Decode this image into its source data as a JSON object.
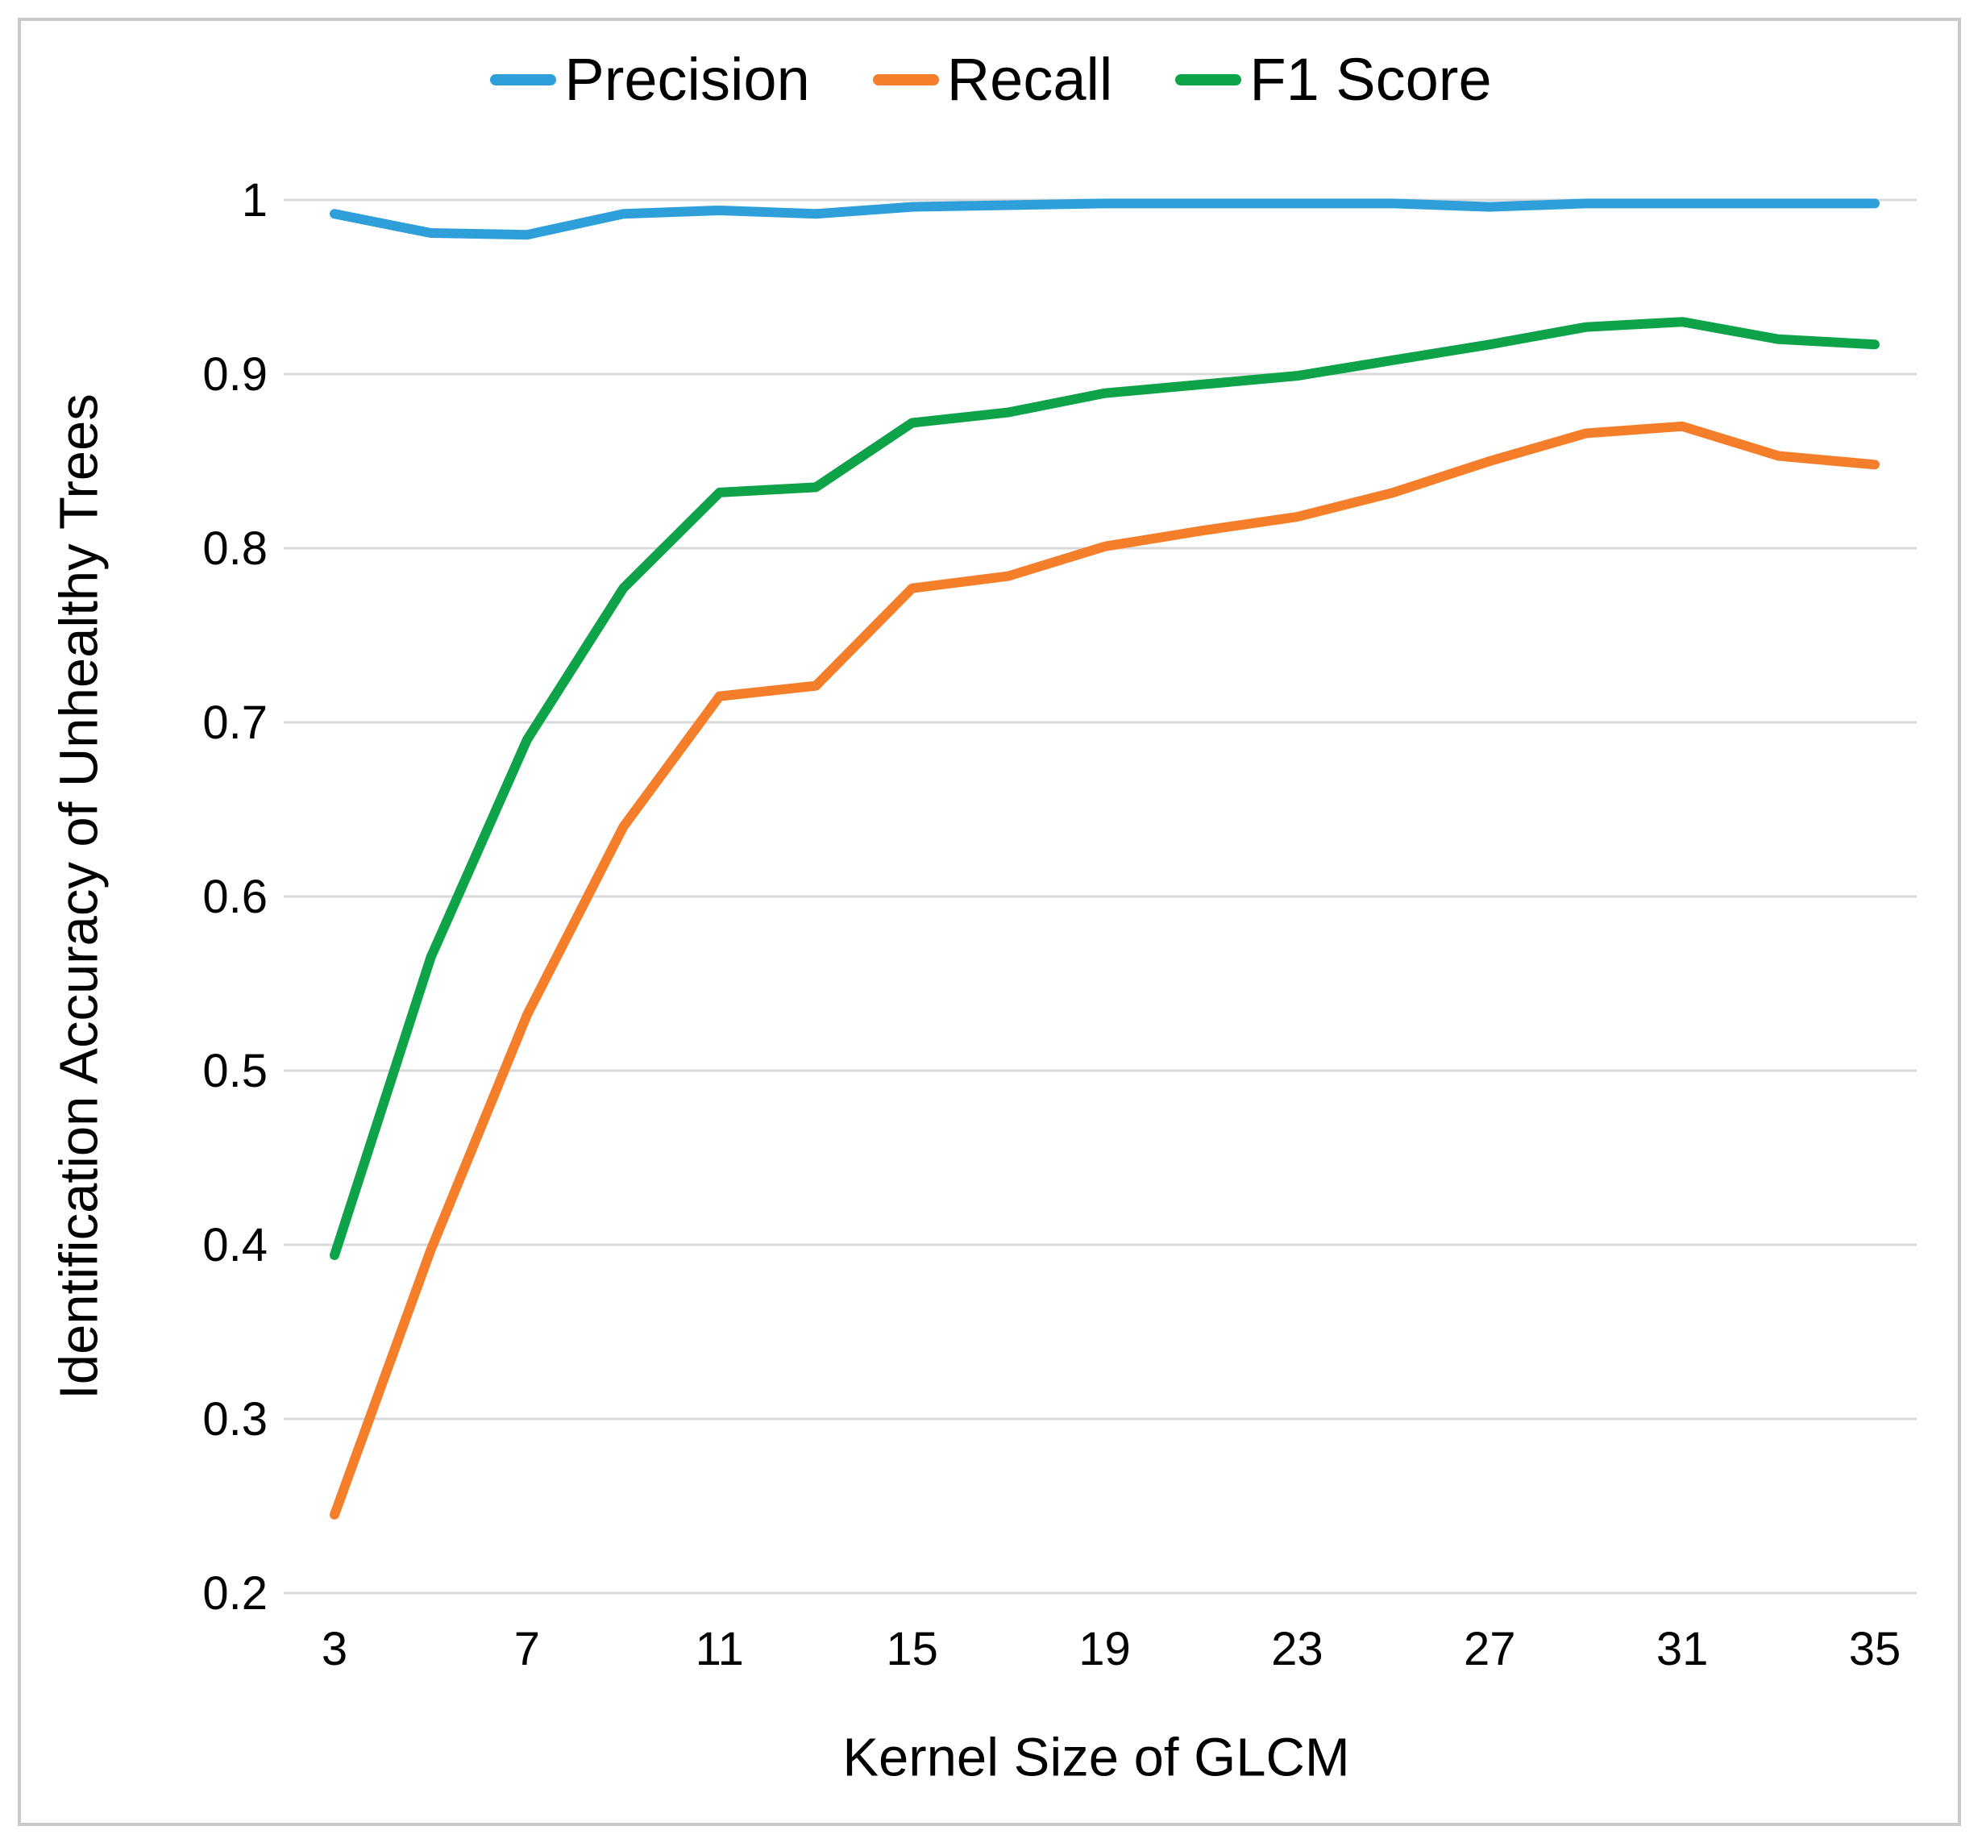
{
  "figure": {
    "background": "#ffffff",
    "border_color": "#c9c9c9"
  },
  "chart_data": {
    "type": "line",
    "title": "",
    "xlabel": "Kernel Size of GLCM",
    "ylabel": "Identification Accuracy of Unhealthy Trees",
    "x": [
      3,
      5,
      7,
      9,
      11,
      13,
      15,
      17,
      19,
      21,
      23,
      25,
      27,
      29,
      31,
      33,
      35
    ],
    "x_tick_labels": [
      "3",
      "7",
      "11",
      "15",
      "19",
      "23",
      "27",
      "31",
      "35"
    ],
    "x_tick_values": [
      3,
      7,
      11,
      15,
      19,
      23,
      27,
      31,
      35
    ],
    "xlim": [
      3,
      35
    ],
    "ylim": [
      0.2,
      1.0
    ],
    "y_tick_values": [
      0.2,
      0.3,
      0.4,
      0.5,
      0.6,
      0.7,
      0.8,
      0.9,
      1.0
    ],
    "y_tick_labels": [
      "0.2",
      "0.3",
      "0.4",
      "0.5",
      "0.6",
      "0.7",
      "0.8",
      "0.9",
      "1"
    ],
    "grid": "horizontal",
    "legend_position": "top-center",
    "gridline_color": "#d9d9d9",
    "series": [
      {
        "name": "Precision",
        "color": "#2f9fda",
        "values": [
          0.992,
          0.981,
          0.98,
          0.992,
          0.994,
          0.992,
          0.996,
          0.997,
          0.998,
          0.998,
          0.998,
          0.998,
          0.996,
          0.998,
          0.998,
          0.998,
          0.998
        ]
      },
      {
        "name": "Recall",
        "color": "#f57e2a",
        "values": [
          0.245,
          0.397,
          0.532,
          0.64,
          0.715,
          0.721,
          0.777,
          0.784,
          0.801,
          0.81,
          0.818,
          0.832,
          0.85,
          0.866,
          0.87,
          0.853,
          0.848
        ]
      },
      {
        "name": "F1 Score",
        "color": "#0ea349",
        "values": [
          0.394,
          0.565,
          0.69,
          0.777,
          0.832,
          0.835,
          0.872,
          0.878,
          0.889,
          0.894,
          0.899,
          0.908,
          0.917,
          0.927,
          0.93,
          0.92,
          0.917
        ]
      }
    ]
  }
}
